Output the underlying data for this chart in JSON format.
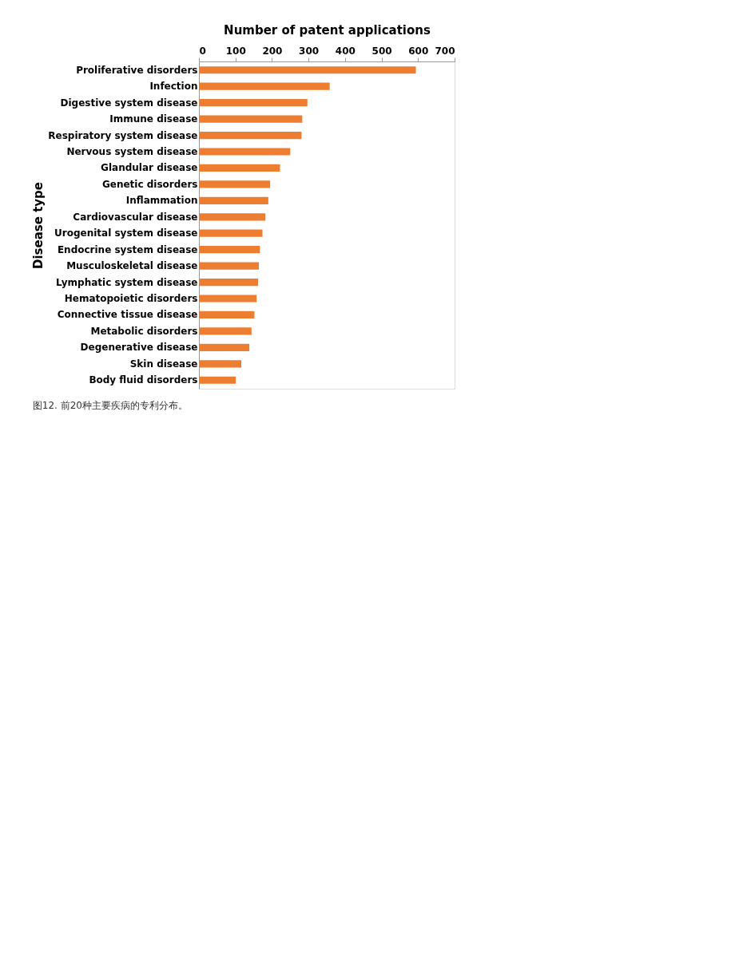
{
  "chart_data": {
    "type": "bar",
    "orientation": "horizontal",
    "xlabel": "Number of patent applications",
    "ylabel": "Disease type",
    "categories": [
      "Proliferative disorders",
      "Infection",
      "Digestive system disease",
      "Immune disease",
      "Respiratory system disease",
      "Nervous system disease",
      "Glandular disease",
      "Genetic disorders",
      "Inflammation",
      "Cardiovascular disease",
      "Urogenital system disease",
      "Endocrine system disease",
      "Musculoskeletal disease",
      "Lymphatic system disease",
      "Hematopoietic disorders",
      "Connective tissue disease",
      "Metabolic disorders",
      "Degenerative disease",
      "Skin disease",
      "Body fluid disorders"
    ],
    "values": [
      594,
      358,
      297,
      283,
      281,
      250,
      222,
      195,
      190,
      182,
      174,
      167,
      164,
      162,
      158,
      152,
      144,
      138,
      116,
      101
    ],
    "color": "#ed7d31",
    "xlim": [
      0,
      700
    ],
    "xticks": [
      0,
      100,
      200,
      300,
      400,
      500,
      600,
      700
    ],
    "grid": false,
    "annotations": [
      "图12. 前20种主要疾病的专利分布。"
    ]
  }
}
